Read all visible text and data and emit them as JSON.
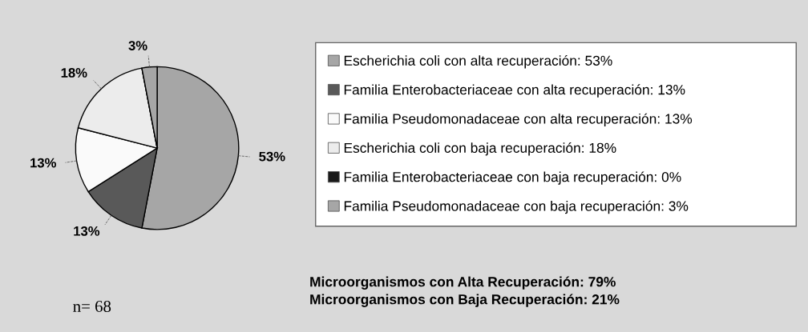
{
  "chart_data": {
    "type": "pie",
    "categories": [
      "Escherichia coli con alta recuperación: 53%",
      "Familia Enterobacteriaceae con alta recuperación: 13%",
      "Familia Pseudomonadaceae con alta recuperación: 13%",
      "Escherichia coli con baja recuperación: 18%",
      "Familia Enterobacteriaceae con baja recuperación: 0%",
      "Familia Pseudomonadaceae con baja recuperación: 3%"
    ],
    "values": [
      53,
      13,
      13,
      18,
      0,
      3
    ],
    "colors": [
      "#a6a6a6",
      "#595959",
      "#fafafa",
      "#ececec",
      "#1a1a1a",
      "#a6a6a6"
    ],
    "value_labels": [
      "53%",
      "13%",
      "13%",
      "18%",
      null,
      "3%"
    ],
    "legend": "right",
    "annotations": [
      "Microorganismos con Alta Recuperación: 79%",
      "Microorganismos con Baja Recuperación: 21%",
      "n= 68"
    ]
  }
}
